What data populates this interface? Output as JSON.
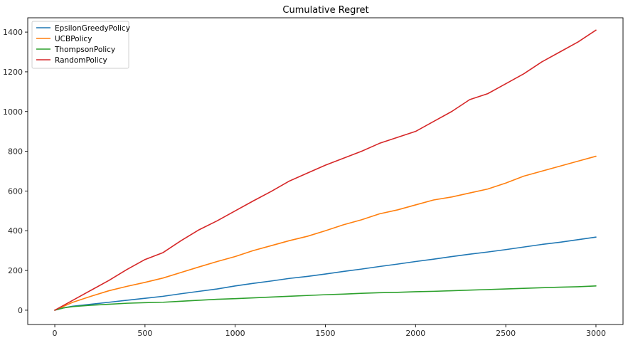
{
  "chart_data": {
    "type": "line",
    "title": "Cumulative Regret",
    "xlabel": "",
    "ylabel": "",
    "xlim": [
      -150,
      3150
    ],
    "ylim": [
      -72,
      1472
    ],
    "xticks": [
      0,
      500,
      1000,
      1500,
      2000,
      2500,
      3000
    ],
    "yticks": [
      0,
      200,
      400,
      600,
      800,
      1000,
      1200,
      1400
    ],
    "grid": false,
    "legend_position": "top-left",
    "series": [
      {
        "name": "EpsilonGreedyPolicy",
        "color": "#1f77b4",
        "x": [
          0,
          50,
          100,
          200,
          300,
          400,
          500,
          600,
          700,
          800,
          900,
          1000,
          1100,
          1200,
          1300,
          1400,
          1500,
          1600,
          1700,
          1800,
          1900,
          2000,
          2100,
          2200,
          2300,
          2400,
          2500,
          2600,
          2700,
          2800,
          2900,
          3000
        ],
        "values": [
          0,
          12,
          20,
          30,
          40,
          50,
          60,
          70,
          83,
          95,
          107,
          122,
          135,
          147,
          160,
          170,
          182,
          195,
          207,
          220,
          232,
          245,
          257,
          270,
          282,
          293,
          305,
          318,
          331,
          342,
          355,
          368
        ]
      },
      {
        "name": "UCBPolicy",
        "color": "#ff7f0e",
        "x": [
          0,
          50,
          100,
          200,
          300,
          400,
          500,
          600,
          700,
          800,
          900,
          1000,
          1100,
          1200,
          1300,
          1400,
          1500,
          1600,
          1700,
          1800,
          1900,
          2000,
          2100,
          2200,
          2300,
          2400,
          2500,
          2600,
          2700,
          2800,
          2900,
          3000
        ],
        "values": [
          0,
          20,
          40,
          70,
          98,
          120,
          140,
          162,
          190,
          218,
          245,
          270,
          300,
          325,
          350,
          372,
          400,
          430,
          455,
          485,
          505,
          530,
          555,
          570,
          590,
          610,
          640,
          675,
          700,
          725,
          750,
          775
        ]
      },
      {
        "name": "ThompsonPolicy",
        "color": "#2ca02c",
        "x": [
          0,
          50,
          100,
          200,
          300,
          400,
          500,
          600,
          700,
          800,
          900,
          1000,
          1100,
          1200,
          1300,
          1400,
          1500,
          1600,
          1700,
          1800,
          1900,
          2000,
          2100,
          2200,
          2300,
          2400,
          2500,
          2600,
          2700,
          2800,
          2900,
          3000
        ],
        "values": [
          0,
          12,
          18,
          25,
          30,
          35,
          38,
          40,
          45,
          50,
          55,
          58,
          62,
          66,
          70,
          74,
          78,
          81,
          85,
          88,
          90,
          93,
          95,
          98,
          101,
          104,
          107,
          110,
          113,
          116,
          118,
          122
        ]
      },
      {
        "name": "RandomPolicy",
        "color": "#d62728",
        "x": [
          0,
          50,
          100,
          200,
          300,
          400,
          500,
          600,
          700,
          800,
          900,
          1000,
          1100,
          1200,
          1300,
          1400,
          1500,
          1600,
          1700,
          1800,
          1900,
          2000,
          2100,
          2200,
          2300,
          2400,
          2500,
          2600,
          2700,
          2800,
          2900,
          3000
        ],
        "values": [
          0,
          25,
          50,
          100,
          150,
          205,
          255,
          290,
          350,
          405,
          450,
          500,
          550,
          598,
          650,
          690,
          730,
          765,
          800,
          840,
          870,
          900,
          950,
          1000,
          1060,
          1090,
          1140,
          1190,
          1250,
          1300,
          1350,
          1410
        ]
      }
    ]
  }
}
